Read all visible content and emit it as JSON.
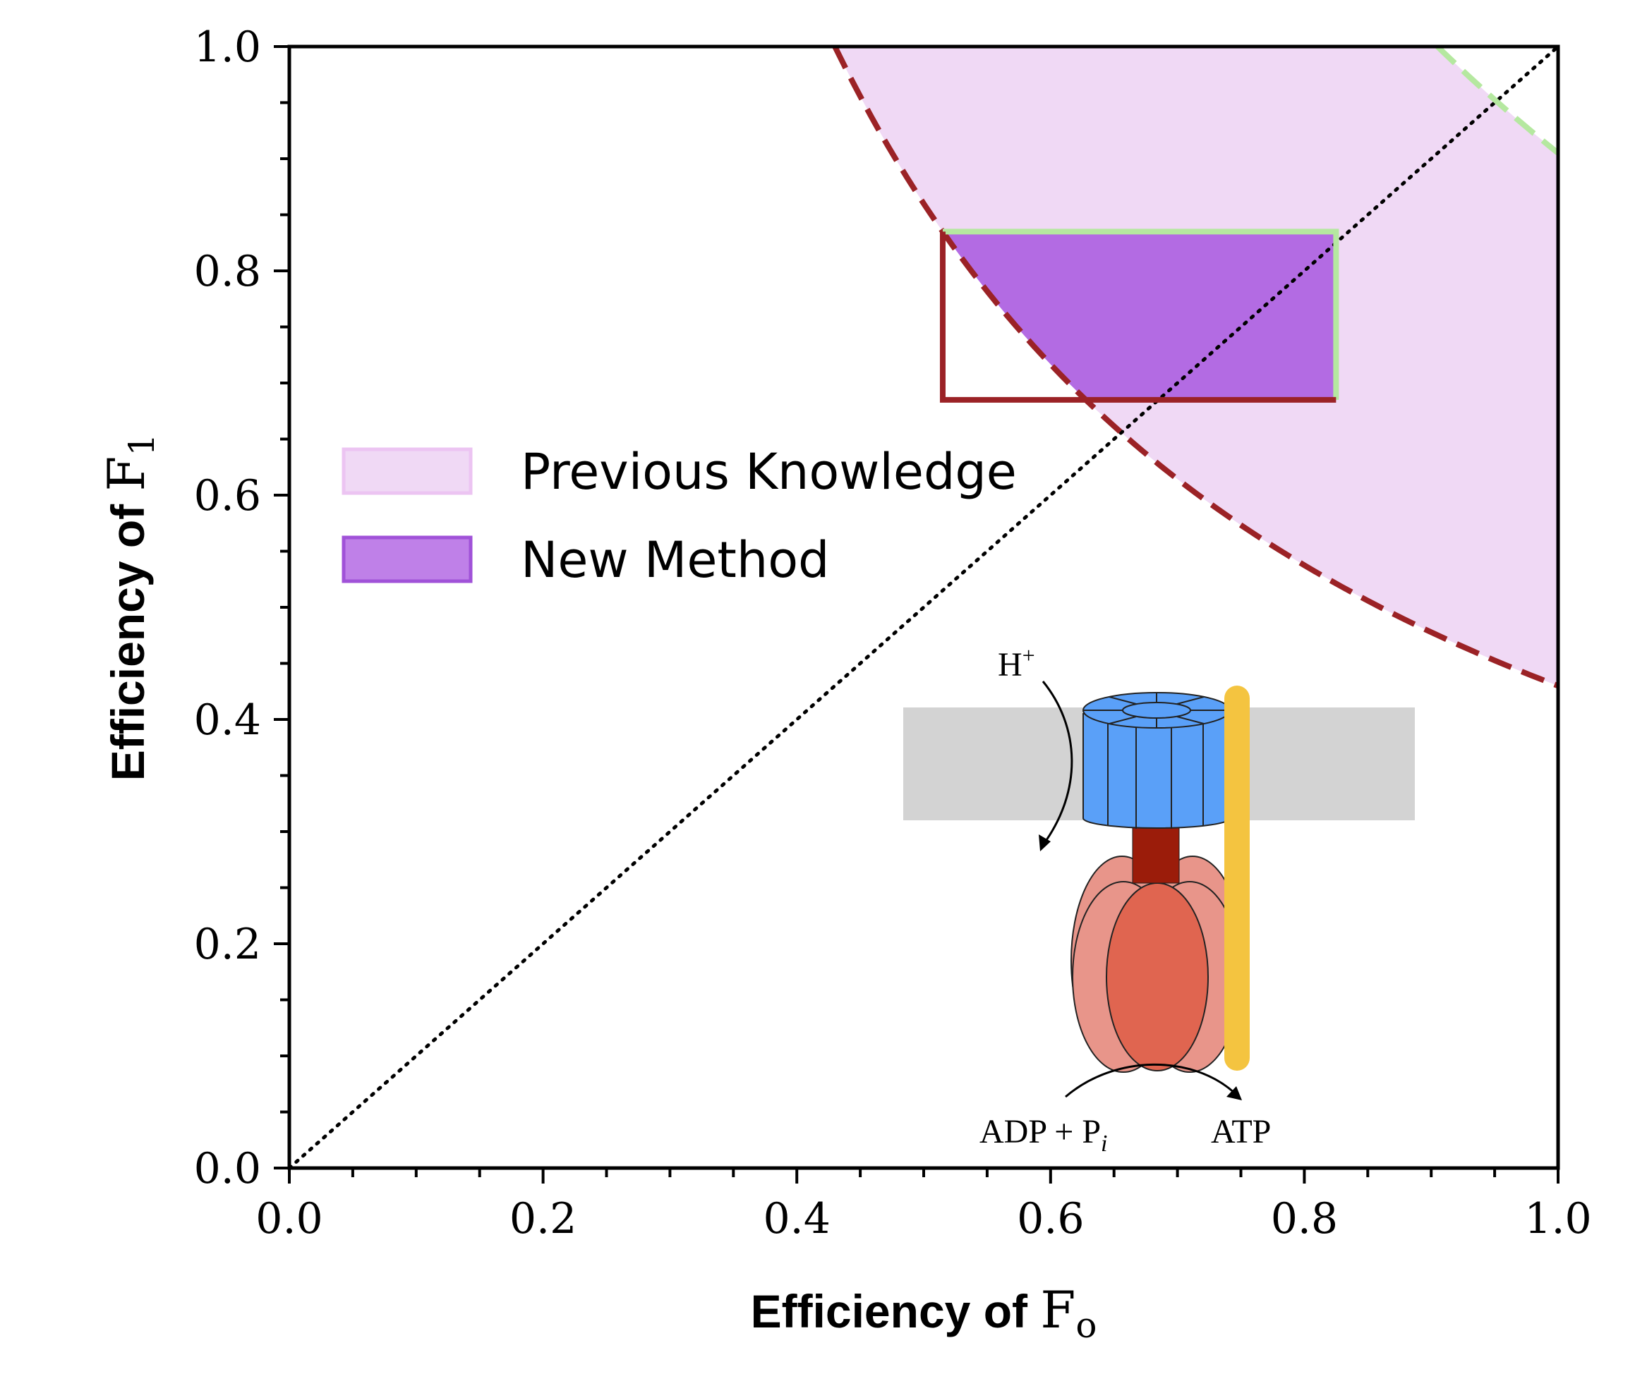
{
  "chart_data": {
    "type": "area",
    "xlabel": {
      "text": "Efficiency of ",
      "math": "F",
      "sub": "o"
    },
    "ylabel": {
      "text": "Efficiency of ",
      "math": "F",
      "sub": "1"
    },
    "xlim": [
      0.0,
      1.0
    ],
    "ylim": [
      0.0,
      1.0
    ],
    "xticks": [
      "0.0",
      "0.2",
      "0.4",
      "0.6",
      "0.8",
      "1.0"
    ],
    "yticks": [
      "0.0",
      "0.2",
      "0.4",
      "0.6",
      "0.8",
      "1.0"
    ],
    "grid": false,
    "legend_position": "middle-left",
    "series": [
      {
        "name": "Previous Knowledge",
        "kind": "band between dashed curves",
        "lower_bound_curve": {
          "constant": 0.43,
          "x": [
            0.43,
            0.5,
            0.6,
            0.7,
            0.8,
            0.9,
            1.0
          ],
          "y": [
            1.0,
            0.86,
            0.717,
            0.614,
            0.538,
            0.478,
            0.43
          ]
        },
        "upper_bound_curve": {
          "constant": 0.905,
          "x": [
            0.905,
            0.95,
            1.0
          ],
          "y": [
            1.0,
            0.953,
            0.905
          ]
        },
        "fill_color": "#f0d9f5",
        "lower_line_color": "#9b2226",
        "upper_line_color": "#b5e8a0"
      },
      {
        "name": "New Method",
        "kind": "region inside box above lower curve",
        "x_range": [
          0.515,
          0.825
        ],
        "y_range": [
          0.685,
          0.835
        ],
        "fill_color": "#b36be3",
        "box_edge_colors": {
          "left_bottom": "#9b2226",
          "top_right": "#b5e8a0"
        }
      }
    ],
    "reference_line": {
      "x": [
        0.0,
        1.0
      ],
      "y": [
        0.0,
        1.0
      ],
      "style": "dotted"
    }
  },
  "legend": {
    "items": [
      {
        "label": "Previous Knowledge",
        "fill": "#f0d9f5",
        "edge": "#ecc4f2"
      },
      {
        "label": "New Method",
        "fill": "#bf80e8",
        "edge": "#a052d8"
      }
    ]
  },
  "inset": {
    "proton_label": "H",
    "proton_sup": "+",
    "adp_label": "ADP + P",
    "adp_sub": "i",
    "atp_label": "ATP",
    "colors": {
      "membrane": "#d3d3d3",
      "rotor": "#5aa0f8",
      "stalk": "#9b1c0a",
      "head_outer": "#e8958a",
      "head_inner": "#e06550",
      "stator": "#f4c440"
    }
  }
}
